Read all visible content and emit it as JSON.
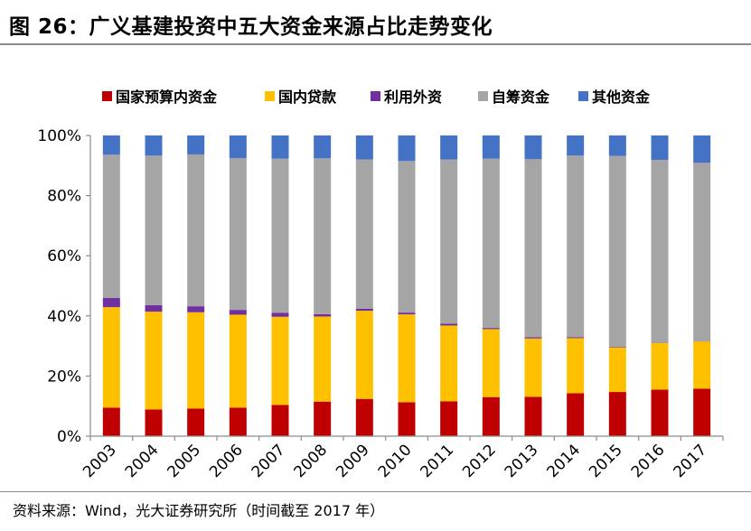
{
  "title": "图 26：广义基建投资中五大资金来源占比走势变化",
  "source": "资料来源：Wind，光大证券研究所（时间截至 2017 年）",
  "chart_data": {
    "type": "bar",
    "stacked": true,
    "title": "",
    "xlabel": "",
    "ylabel": "",
    "ylim": [
      0,
      100
    ],
    "y_ticks": [
      "0%",
      "20%",
      "40%",
      "60%",
      "80%",
      "100%"
    ],
    "grid": false,
    "legend_position": "top",
    "categories": [
      "2003",
      "2004",
      "2005",
      "2006",
      "2007",
      "2008",
      "2009",
      "2010",
      "2011",
      "2012",
      "2013",
      "2014",
      "2015",
      "2016",
      "2017"
    ],
    "series": [
      {
        "name": "国家预算内资金",
        "color": "#c00000",
        "values": [
          9.5,
          8.9,
          9.2,
          9.5,
          10.4,
          11.5,
          12.4,
          11.3,
          11.6,
          13.0,
          13.1,
          14.3,
          14.7,
          15.5,
          15.8
        ]
      },
      {
        "name": "国内贷款",
        "color": "#ffc000",
        "values": [
          33.4,
          32.5,
          32.0,
          30.9,
          29.3,
          28.3,
          29.3,
          29.2,
          25.2,
          22.6,
          19.4,
          18.3,
          14.8,
          15.5,
          15.7
        ]
      },
      {
        "name": "利用外资",
        "color": "#7030a0",
        "values": [
          3.1,
          2.2,
          2.0,
          1.6,
          1.3,
          0.8,
          0.7,
          0.6,
          0.6,
          0.4,
          0.4,
          0.3,
          0.2,
          0.1,
          0.1
        ]
      },
      {
        "name": "自筹资金",
        "color": "#a5a5a5",
        "values": [
          47.6,
          49.7,
          50.5,
          50.5,
          51.3,
          51.8,
          49.6,
          50.4,
          54.6,
          56.3,
          59.2,
          60.4,
          63.5,
          60.8,
          59.3
        ]
      },
      {
        "name": "其他资金",
        "color": "#4472c4",
        "values": [
          6.4,
          6.7,
          6.3,
          7.5,
          7.7,
          7.6,
          8.0,
          8.5,
          8.0,
          7.7,
          7.9,
          6.7,
          6.8,
          8.1,
          9.1
        ]
      }
    ]
  }
}
